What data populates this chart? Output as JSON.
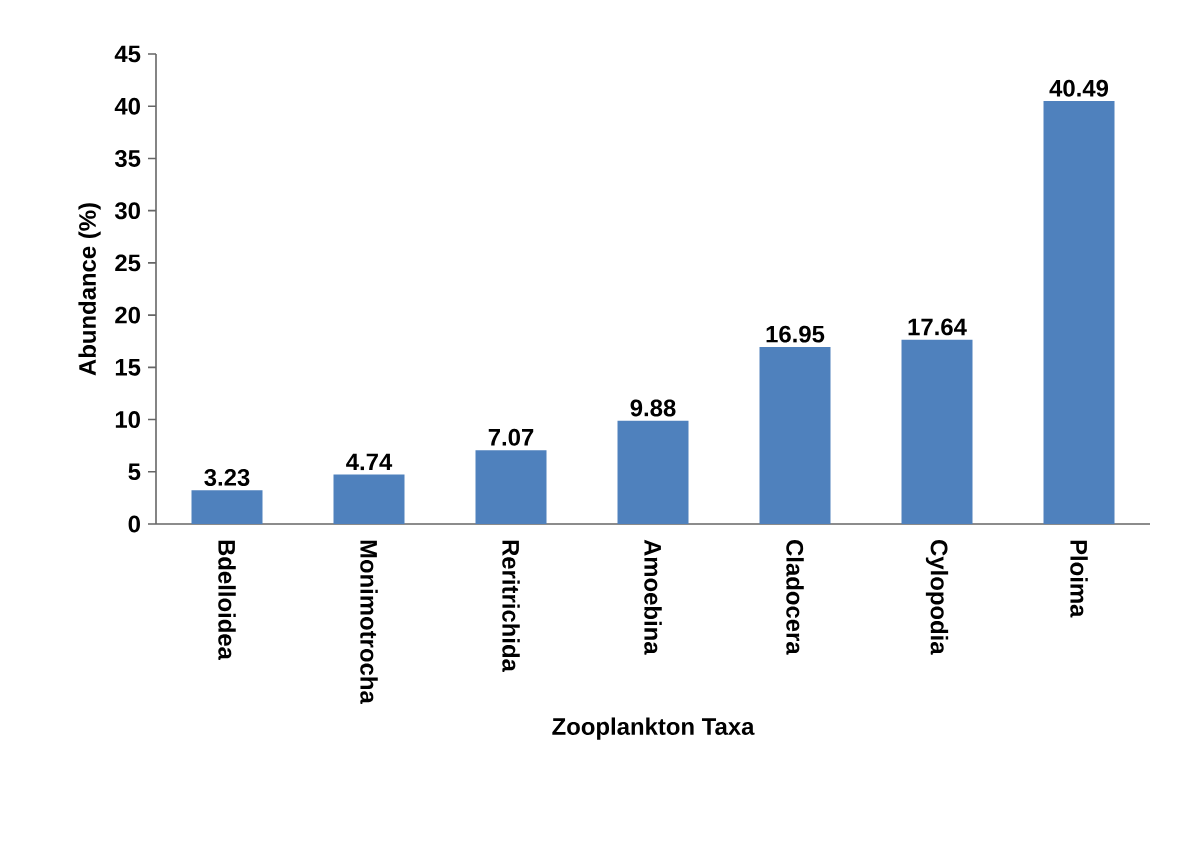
{
  "chart_data": {
    "type": "bar",
    "xlabel": "Zooplankton Taxa",
    "ylabel": "Abundance (%)",
    "categories": [
      "Bdelloidea",
      "Monimotrocha",
      "Reritrichida",
      "Amoebina",
      "Cladocera",
      "Cylopodia",
      "Ploima"
    ],
    "values": [
      3.23,
      4.74,
      7.07,
      9.88,
      16.95,
      17.64,
      40.49
    ],
    "color": "#4f81bd",
    "ylim": [
      0,
      45
    ],
    "yticks": [
      0,
      5,
      10,
      15,
      20,
      25,
      30,
      35,
      40,
      45
    ],
    "data_labels": true,
    "grid": false
  }
}
